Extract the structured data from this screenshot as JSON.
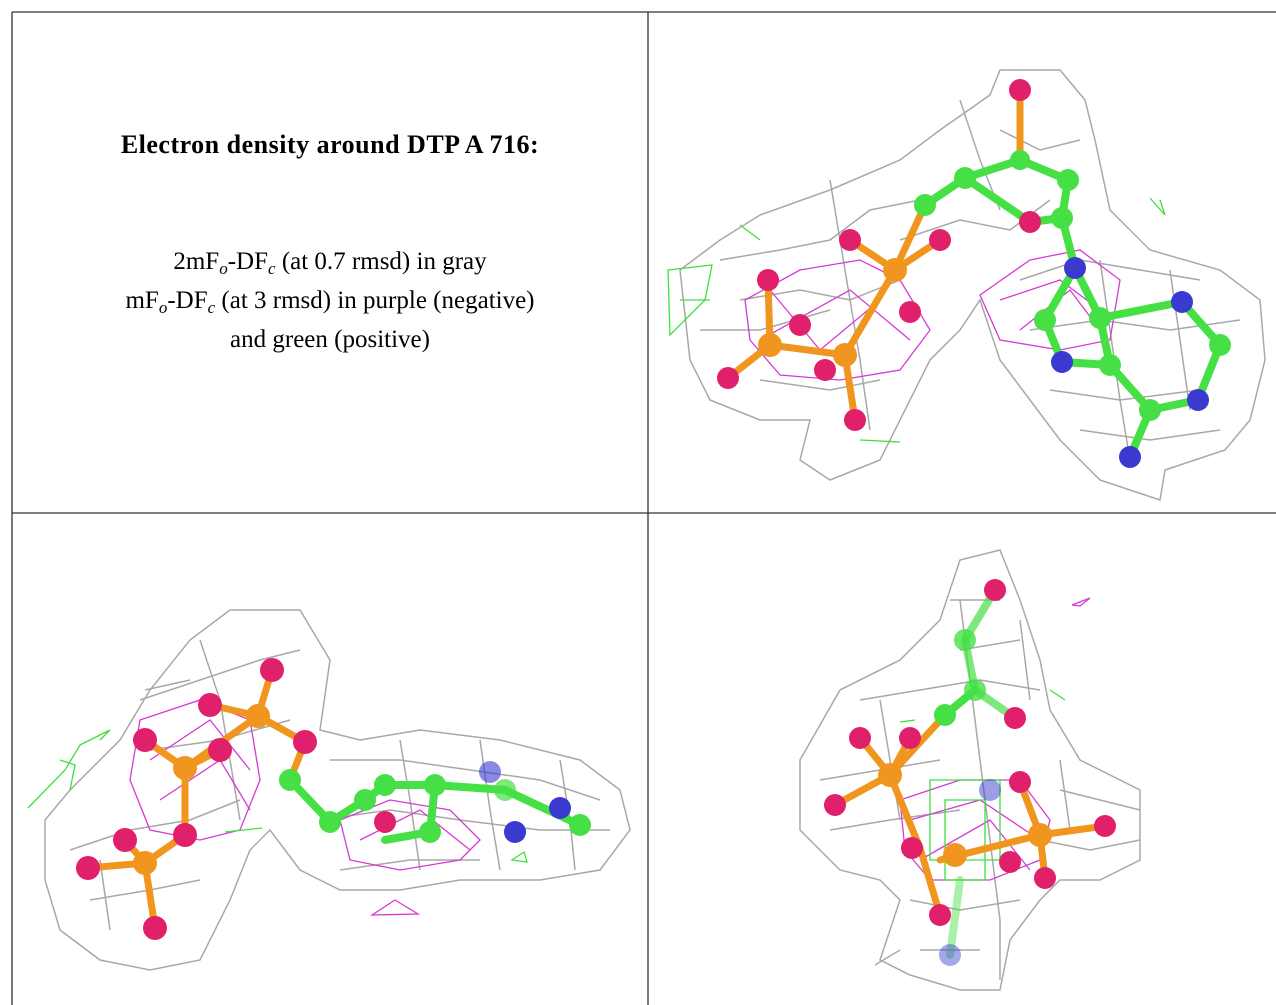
{
  "title": "Electron density around DTP A 716:",
  "legend": [
    {
      "parts": [
        "2mF",
        "o",
        "-DF",
        "c",
        " (at 0.7 rmsd) in gray"
      ]
    },
    {
      "parts": [
        "mF",
        "o",
        "-DF",
        "c",
        " (at 3 rmsd) in purple (negative)"
      ]
    },
    {
      "parts": [
        "and green (positive)"
      ]
    }
  ]
}
